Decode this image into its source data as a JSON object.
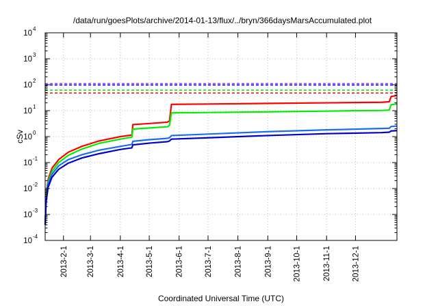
{
  "chart_data": {
    "type": "line",
    "title": "/data/run/goesPlots/archive/2014-01-13/flux/../bryn/366daysMarsAccumulated.plot",
    "xlabel": "Coordinated Universal Time (UTC)",
    "ylabel": "cSv",
    "y_scale": "log",
    "ylim": [
      0.0001,
      10000
    ],
    "xlim": [
      "2013-01-13",
      "2014-01-13"
    ],
    "y_ticks": [
      {
        "base": "10",
        "exp": "-4"
      },
      {
        "base": "10",
        "exp": "-3"
      },
      {
        "base": "10",
        "exp": "-2"
      },
      {
        "base": "10",
        "exp": "-1"
      },
      {
        "base": "10",
        "exp": "0"
      },
      {
        "base": "10",
        "exp": "1"
      },
      {
        "base": "10",
        "exp": "2"
      },
      {
        "base": "10",
        "exp": "3"
      },
      {
        "base": "10",
        "exp": "4"
      }
    ],
    "x_ticks": [
      "2013-2-1",
      "2013-3-1",
      "2013-4-1",
      "2013-5-1",
      "2013-6-1",
      "2013-7-1",
      "2013-8-1",
      "2013-9-1",
      "2013-10-1",
      "2013-11-1",
      "2013-12-1"
    ],
    "grid": true,
    "reference_lines": [
      {
        "y": 110,
        "color": "#9933ff",
        "style": "dashed"
      },
      {
        "y": 97,
        "color": "#0000ff",
        "style": "dashed"
      },
      {
        "y": 62,
        "color": "#00ee00",
        "style": "dashed"
      },
      {
        "y": 48,
        "color": "#ff0000",
        "style": "dashed"
      }
    ],
    "series": [
      {
        "color": "#ff0000",
        "points": [
          [
            "2013-01-13",
            0.0004
          ],
          [
            "2013-01-14",
            0.006
          ],
          [
            "2013-01-16",
            0.022
          ],
          [
            "2013-01-20",
            0.06
          ],
          [
            "2013-01-27",
            0.13
          ],
          [
            "2013-02-06",
            0.25
          ],
          [
            "2013-02-20",
            0.42
          ],
          [
            "2013-03-10",
            0.68
          ],
          [
            "2013-04-01",
            1.0
          ],
          [
            "2013-04-13",
            1.15
          ],
          [
            "2013-04-14",
            2.9
          ],
          [
            "2013-05-01",
            3.2
          ],
          [
            "2013-05-20",
            3.6
          ],
          [
            "2013-05-22",
            4.0
          ],
          [
            "2013-05-24",
            17.5
          ],
          [
            "2013-07-01",
            18.0
          ],
          [
            "2013-09-01",
            19.0
          ],
          [
            "2013-11-01",
            20.0
          ],
          [
            "2013-12-28",
            21.0
          ],
          [
            "2014-01-05",
            22.0
          ],
          [
            "2014-01-07",
            35.0
          ],
          [
            "2014-01-13",
            38.0
          ]
        ]
      },
      {
        "color": "#00ee00",
        "points": [
          [
            "2013-01-13",
            0.0004
          ],
          [
            "2013-01-14",
            0.005
          ],
          [
            "2013-01-16",
            0.018
          ],
          [
            "2013-01-20",
            0.045
          ],
          [
            "2013-01-27",
            0.1
          ],
          [
            "2013-02-06",
            0.19
          ],
          [
            "2013-02-20",
            0.33
          ],
          [
            "2013-03-10",
            0.55
          ],
          [
            "2013-04-01",
            0.8
          ],
          [
            "2013-04-13",
            0.95
          ],
          [
            "2013-04-14",
            1.95
          ],
          [
            "2013-05-01",
            2.15
          ],
          [
            "2013-05-20",
            2.4
          ],
          [
            "2013-05-22",
            2.7
          ],
          [
            "2013-05-24",
            8.2
          ],
          [
            "2013-07-01",
            8.5
          ],
          [
            "2013-09-01",
            9.0
          ],
          [
            "2013-11-01",
            9.6
          ],
          [
            "2013-12-28",
            10.2
          ],
          [
            "2014-01-05",
            10.5
          ],
          [
            "2014-01-07",
            17.0
          ],
          [
            "2014-01-13",
            18.0
          ]
        ]
      },
      {
        "color": "#1c6cf0",
        "points": [
          [
            "2013-01-13",
            0.0004
          ],
          [
            "2013-01-14",
            0.004
          ],
          [
            "2013-01-16",
            0.015
          ],
          [
            "2013-01-20",
            0.035
          ],
          [
            "2013-01-27",
            0.075
          ],
          [
            "2013-02-06",
            0.13
          ],
          [
            "2013-02-20",
            0.2
          ],
          [
            "2013-03-10",
            0.3
          ],
          [
            "2013-04-01",
            0.42
          ],
          [
            "2013-04-13",
            0.5
          ],
          [
            "2013-04-14",
            0.66
          ],
          [
            "2013-05-01",
            0.76
          ],
          [
            "2013-05-20",
            0.86
          ],
          [
            "2013-05-22",
            0.9
          ],
          [
            "2013-05-24",
            1.1
          ],
          [
            "2013-07-01",
            1.25
          ],
          [
            "2013-09-01",
            1.55
          ],
          [
            "2013-11-01",
            1.82
          ],
          [
            "2013-12-28",
            2.05
          ],
          [
            "2014-01-05",
            2.1
          ],
          [
            "2014-01-07",
            2.45
          ],
          [
            "2014-01-13",
            2.55
          ]
        ]
      },
      {
        "color": "#0000cc",
        "points": [
          [
            "2013-01-13",
            0.0004
          ],
          [
            "2013-01-14",
            0.003
          ],
          [
            "2013-01-16",
            0.011
          ],
          [
            "2013-01-20",
            0.027
          ],
          [
            "2013-01-27",
            0.055
          ],
          [
            "2013-02-06",
            0.095
          ],
          [
            "2013-02-20",
            0.15
          ],
          [
            "2013-03-10",
            0.22
          ],
          [
            "2013-04-01",
            0.32
          ],
          [
            "2013-04-13",
            0.37
          ],
          [
            "2013-04-14",
            0.48
          ],
          [
            "2013-05-01",
            0.56
          ],
          [
            "2013-05-20",
            0.64
          ],
          [
            "2013-05-22",
            0.68
          ],
          [
            "2013-05-24",
            0.8
          ],
          [
            "2013-07-01",
            0.9
          ],
          [
            "2013-09-01",
            1.1
          ],
          [
            "2013-11-01",
            1.3
          ],
          [
            "2013-12-28",
            1.42
          ],
          [
            "2014-01-05",
            1.48
          ],
          [
            "2014-01-07",
            1.65
          ],
          [
            "2014-01-13",
            1.7
          ]
        ]
      }
    ]
  }
}
